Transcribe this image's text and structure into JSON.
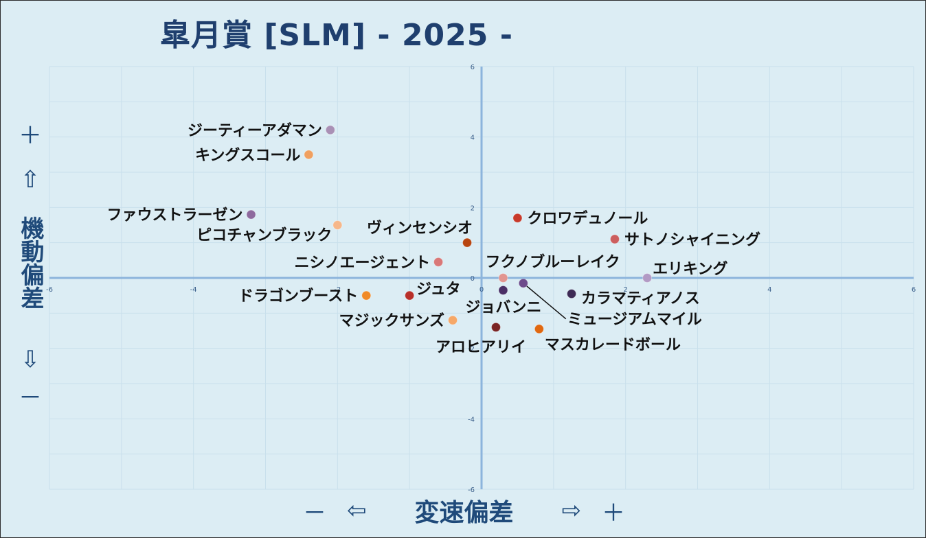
{
  "title": "皐月賞 [SLM]  - 2025 -",
  "y_axis": {
    "plus": "＋",
    "up_arrow": "⇧",
    "label": "機動偏差",
    "down_arrow": "⇩",
    "minus": "－"
  },
  "x_axis": {
    "minus": "－",
    "left_arrow": "⇦",
    "label": "変速偏差",
    "right_arrow": "⇨",
    "plus": "＋"
  },
  "chart_data": {
    "type": "scatter",
    "title": "皐月賞 [SLM]  - 2025 -",
    "xlabel": "変速偏差",
    "ylabel": "機動偏差",
    "xlim": [
      -6,
      6
    ],
    "ylim": [
      -6,
      6
    ],
    "x_ticks": [
      "-6",
      "-4",
      "-2",
      "0",
      "2",
      "4",
      "6"
    ],
    "y_ticks": [
      "6",
      "4",
      "2",
      "0",
      "-2",
      "-4",
      "-6"
    ],
    "grid": true,
    "points": [
      {
        "name": "ジーティーアダマン",
        "x": -2.1,
        "y": 4.2,
        "color": "#a990b5"
      },
      {
        "name": "キングスコール",
        "x": -2.4,
        "y": 3.5,
        "color": "#f0a060"
      },
      {
        "name": "ファウストラーゼン",
        "x": -3.2,
        "y": 1.8,
        "color": "#8e6a9e"
      },
      {
        "name": "ピコチャンブラック",
        "x": -2.0,
        "y": 1.5,
        "color": "#f6b78a"
      },
      {
        "name": "ヴィンセンシオ",
        "x": -0.2,
        "y": 1.0,
        "color": "#b84510"
      },
      {
        "name": "クロワデュノール",
        "x": 0.5,
        "y": 1.7,
        "color": "#c83a2a"
      },
      {
        "name": "サトノシャイニング",
        "x": 1.85,
        "y": 1.1,
        "color": "#cc5e5e"
      },
      {
        "name": "ニシノエージェント",
        "x": -0.6,
        "y": 0.45,
        "color": "#d97878"
      },
      {
        "name": "フクノブルーレイク",
        "x": 0.3,
        "y": 0.0,
        "color": "#e29590"
      },
      {
        "name": "エリキング",
        "x": 2.3,
        "y": 0.0,
        "color": "#b29ac4"
      },
      {
        "name": "ドラゴンブースト",
        "x": -1.6,
        "y": -0.5,
        "color": "#f08a28"
      },
      {
        "name": "ジュタ",
        "x": -1.0,
        "y": -0.5,
        "color": "#b8302a"
      },
      {
        "name": "ジョバンニ",
        "x": 0.3,
        "y": -0.35,
        "color": "#4a2f66"
      },
      {
        "name": "ミュージアムマイル",
        "x": 0.58,
        "y": -0.15,
        "color": "#6e4c8c"
      },
      {
        "name": "カラマティアノス",
        "x": 1.25,
        "y": -0.45,
        "color": "#3e2b55"
      },
      {
        "name": "マジックサンズ",
        "x": -0.4,
        "y": -1.2,
        "color": "#f6a868"
      },
      {
        "name": "アロヒアリイ",
        "x": 0.2,
        "y": -1.4,
        "color": "#7a2424"
      },
      {
        "name": "マスカレードボール",
        "x": 0.8,
        "y": -1.45,
        "color": "#e06810"
      }
    ]
  }
}
